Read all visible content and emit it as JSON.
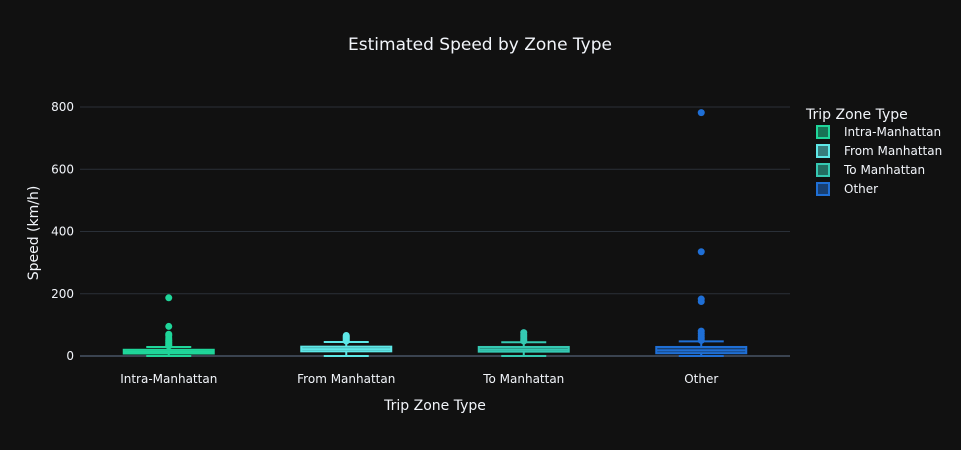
{
  "chart_data": {
    "type": "box",
    "title": "Estimated Speed by Zone Type",
    "xlabel": "Trip Zone Type",
    "ylabel": "Speed (km/h)",
    "ylim": [
      -20,
      900
    ],
    "yticks": [
      0,
      200,
      400,
      600,
      800
    ],
    "grid": true,
    "legend": {
      "title": "Trip Zone Type",
      "placement": "right"
    },
    "categories": [
      "Intra-Manhattan",
      "From Manhattan",
      "To Manhattan",
      "Other"
    ],
    "series": [
      {
        "name": "Intra-Manhattan",
        "color": "#1fd69a",
        "min": 0,
        "q1": 8,
        "median": 14,
        "q3": 20,
        "max": 29,
        "outliers": [
          33,
          36,
          40,
          44,
          48,
          52,
          58,
          65,
          70,
          95,
          187
        ]
      },
      {
        "name": "From Manhattan",
        "color": "#5ee8e8",
        "min": 0,
        "q1": 15,
        "median": 22,
        "q3": 30,
        "max": 45,
        "outliers": [
          48,
          52,
          56,
          60,
          63,
          66
        ]
      },
      {
        "name": "To Manhattan",
        "color": "#35c9b3",
        "min": 0,
        "q1": 14,
        "median": 21,
        "q3": 29,
        "max": 44,
        "outliers": [
          48,
          53,
          58,
          63,
          68,
          75
        ]
      },
      {
        "name": "Other",
        "color": "#1f6fd6",
        "min": 0,
        "q1": 9,
        "median": 18,
        "q3": 29,
        "max": 47,
        "outliers": [
          50,
          55,
          60,
          66,
          72,
          80,
          175,
          183,
          335,
          782
        ]
      }
    ]
  }
}
